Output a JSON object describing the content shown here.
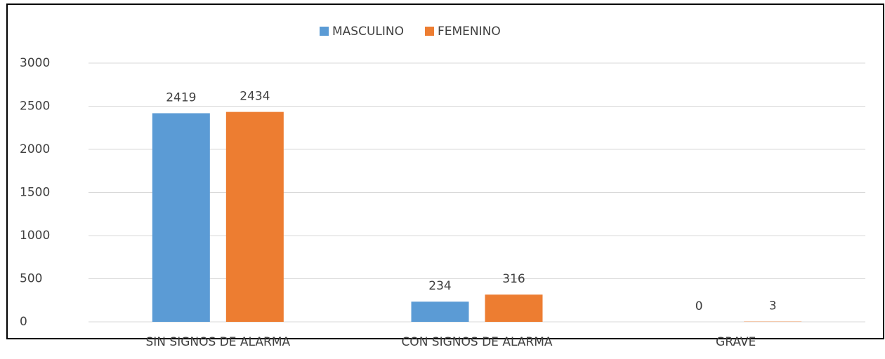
{
  "chart_data": {
    "type": "bar",
    "categories": [
      "SIN SIGNOS DE ALARMA",
      "CON SIGNOS DE ALARMA",
      "GRAVE"
    ],
    "series": [
      {
        "name": "MASCULINO",
        "color": "#5b9bd5",
        "values": [
          2419,
          234,
          0
        ]
      },
      {
        "name": "FEMENINO",
        "color": "#ed7d31",
        "values": [
          2434,
          316,
          3
        ]
      }
    ],
    "ylim": [
      0,
      3000
    ],
    "yticks": [
      0,
      500,
      1000,
      1500,
      2000,
      2500,
      3000
    ],
    "grid": true,
    "legend": "top"
  }
}
